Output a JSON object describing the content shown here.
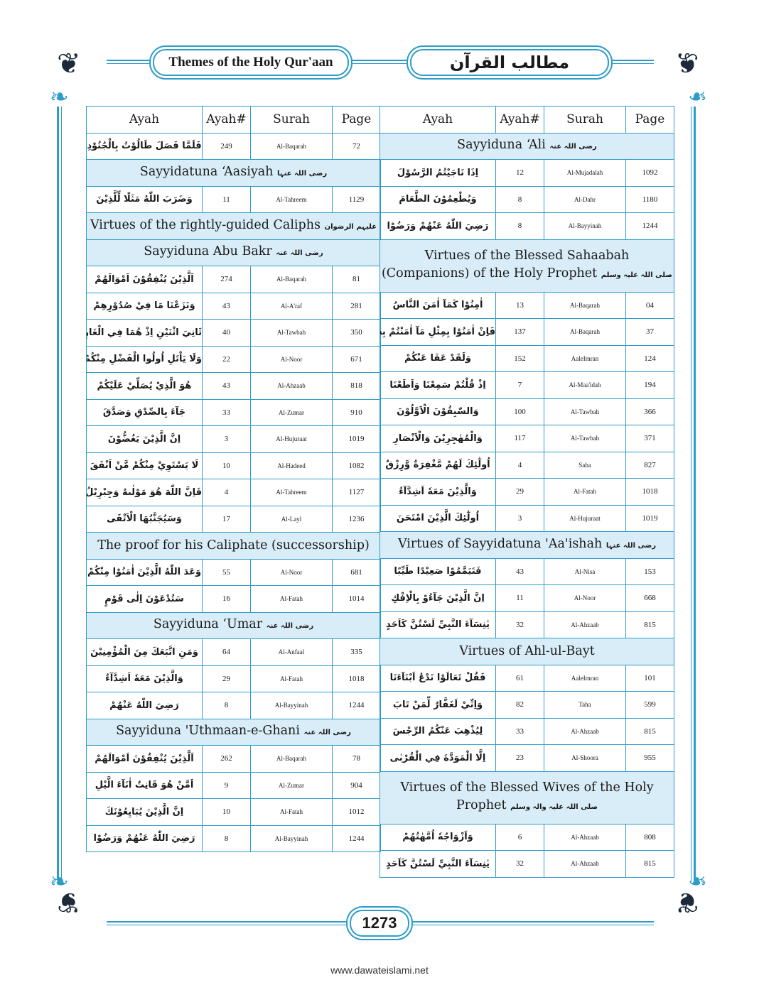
{
  "header": {
    "title_en": "Themes of the Holy Qur'aan",
    "title_ar": "مطالب القرآن"
  },
  "columns": [
    "Ayah",
    "Ayah#",
    "Surah",
    "Page"
  ],
  "left": [
    {
      "type": "row",
      "ayah": "فَلَمَّا فَصَلَ طَالُوْتُ بِالْجُنُوْدِ",
      "num": "249",
      "surah": "Al-Baqarah",
      "page": "72"
    },
    {
      "type": "section",
      "title": "Sayyidatuna ‘Aasiyah",
      "honorific": "رضی اللہ عنہا"
    },
    {
      "type": "row",
      "ayah": "وَضَرَبَ اللّٰهُ مَثَلًا لِّلَّذِيْنَ",
      "num": "11",
      "surah": "Al-Tahreem",
      "page": "1129"
    },
    {
      "type": "section",
      "title": "Virtues of the rightly-guided Caliphs",
      "honorific": "علیہم الرضوان"
    },
    {
      "type": "section",
      "title": "Sayyiduna Abu Bakr",
      "honorific": "رضی اللہ عنہ"
    },
    {
      "type": "row",
      "ayah": "اَلَّذِيْنَ يُنْفِقُوْنَ اَمْوَالَهُمْ",
      "num": "274",
      "surah": "Al-Baqarah",
      "page": "81"
    },
    {
      "type": "row",
      "ayah": "وَنَزَعْنَا مَا فِيْ صُدُوْرِهِمْ",
      "num": "43",
      "surah": "Al-A'raf",
      "page": "281"
    },
    {
      "type": "row",
      "ayah": "ثَانِيَ اثْنَيْنِ اِذْ هُمَا فِي الْغَارِ",
      "num": "40",
      "surah": "Al-Tawbah",
      "page": "350"
    },
    {
      "type": "row",
      "ayah": "وَلَا يَاْتَلِ اُولُوا الْفَضْلِ مِنْكُمْ",
      "num": "22",
      "surah": "Al-Noor",
      "page": "671"
    },
    {
      "type": "row",
      "ayah": "هُوَ الَّذِيْ يُصَلِّيْ عَلَيْكُمْ",
      "num": "43",
      "surah": "Al-Ahzaab",
      "page": "818"
    },
    {
      "type": "row",
      "ayah": "جَآءَ بِالصِّدْقِ وَصَدَّقَ",
      "num": "33",
      "surah": "Al-Zumar",
      "page": "910"
    },
    {
      "type": "row",
      "ayah": "اِنَّ الَّذِيْنَ يَغُضُّوْنَ",
      "num": "3",
      "surah": "Al-Hujuraat",
      "page": "1019"
    },
    {
      "type": "row",
      "ayah": "لَا يَسْتَوِيْ مِنْكُمْ مَّنْ اَنْفَقَ",
      "num": "10",
      "surah": "Al-Hadeed",
      "page": "1082"
    },
    {
      "type": "row",
      "ayah": "فَاِنَّ اللّٰهَ هُوَ مَوْلٰىهُ وَجِبْرِيْلُ",
      "num": "4",
      "surah": "Al-Tahreem",
      "page": "1127"
    },
    {
      "type": "row",
      "ayah": "وَسَيُجَنَّبُهَا الْاَتْقَى",
      "num": "17",
      "surah": "Al-Layl",
      "page": "1236"
    },
    {
      "type": "section",
      "title": "The proof for his Caliphate (successorship)",
      "honorific": ""
    },
    {
      "type": "row",
      "ayah": "وَعَدَ اللّٰهُ الَّذِيْنَ اٰمَنُوْا مِنْكُمْ",
      "num": "55",
      "surah": "Al-Noor",
      "page": "681"
    },
    {
      "type": "row",
      "ayah": "سَتُدْعَوْنَ اِلٰى قَوْمٍ",
      "num": "16",
      "surah": "Al-Fatah",
      "page": "1014"
    },
    {
      "type": "section",
      "title": "Sayyiduna ‘Umar",
      "honorific": "رضی اللہ عنہ"
    },
    {
      "type": "row",
      "ayah": "وَمَنِ اتَّبَعَكَ مِنَ الْمُؤْمِنِيْنَ",
      "num": "64",
      "surah": "Al-Anfaal",
      "page": "335"
    },
    {
      "type": "row",
      "ayah": "وَالَّذِيْنَ مَعَهٗ اَشِدَّآءُ",
      "num": "29",
      "surah": "Al-Fatah",
      "page": "1018"
    },
    {
      "type": "row",
      "ayah": "رَضِيَ اللّٰهُ عَنْهُمْ",
      "num": "8",
      "surah": "Al-Bayyinah",
      "page": "1244"
    },
    {
      "type": "section",
      "title": "Sayyiduna 'Uthmaan-e-Ghani",
      "honorific": "رضی اللہ عنہ"
    },
    {
      "type": "row",
      "ayah": "اَلَّذِيْنَ يُنْفِقُوْنَ اَمْوَالَهُمْ",
      "num": "262",
      "surah": "Al-Baqarah",
      "page": "78"
    },
    {
      "type": "row",
      "ayah": "اَمَّنْ هُوَ قَانِتٌ اٰنَآءَ الَّيْلِ",
      "num": "9",
      "surah": "Al-Zumar",
      "page": "904"
    },
    {
      "type": "row",
      "ayah": "اِنَّ الَّذِيْنَ يُبَايِعُوْنَكَ",
      "num": "10",
      "surah": "Al-Fatah",
      "page": "1012"
    },
    {
      "type": "row",
      "ayah": "رَضِيَ اللّٰهُ عَنْهُمْ وَرَضُوْا",
      "num": "8",
      "surah": "Al-Bayyinah",
      "page": "1244"
    }
  ],
  "right": [
    {
      "type": "section",
      "title": "Sayyiduna ‘Ali",
      "honorific": "رضی اللہ عنہ"
    },
    {
      "type": "row",
      "ayah": "اِذَا نَاجَيْتُمُ الرَّسُوْلَ",
      "num": "12",
      "surah": "Al-Mujadalah",
      "page": "1092"
    },
    {
      "type": "row",
      "ayah": "وَيُطْعِمُوْنَ الطَّعَامَ",
      "num": "8",
      "surah": "Al-Dahr",
      "page": "1180"
    },
    {
      "type": "row",
      "ayah": "رَضِيَ اللّٰهُ عَنْهُمْ وَرَضُوْا",
      "num": "8",
      "surah": "Al-Bayyinah",
      "page": "1244"
    },
    {
      "type": "section",
      "title": "Virtues of the Blessed Sahaabah (Companions) of the Holy Prophet",
      "honorific": "صلی اللہ علیہ وسلم",
      "double": true
    },
    {
      "type": "row",
      "ayah": "اٰمِنُوْا كَمَآ اٰمَنَ النَّاسُ",
      "num": "13",
      "surah": "Al-Baqarah",
      "page": "04"
    },
    {
      "type": "row",
      "ayah": "فَاِنْ اٰمَنُوْا بِمِثْلِ مَآ اٰمَنْتُمْ بِهٖ",
      "num": "137",
      "surah": "Al-Baqarah",
      "page": "37"
    },
    {
      "type": "row",
      "ayah": "وَلَقَدْ عَفَا عَنْكُمْ",
      "num": "152",
      "surah": "AaleImran",
      "page": "124"
    },
    {
      "type": "row",
      "ayah": "اِذْ قُلْتُمْ سَمِعْنَا وَاَطَعْنَا",
      "num": "7",
      "surah": "Al-Maa'idah",
      "page": "194"
    },
    {
      "type": "row",
      "ayah": "وَالسّٰبِقُوْنَ الْاَوَّلُوْنَ",
      "num": "100",
      "surah": "Al-Tawbah",
      "page": "366"
    },
    {
      "type": "row",
      "ayah": "وَالْمُهٰجِرِيْنَ وَالْاَنْصَارِ",
      "num": "117",
      "surah": "Al-Tawbah",
      "page": "371"
    },
    {
      "type": "row",
      "ayah": "اُولٰٓئِكَ لَهُمْ مَّغْفِرَةٌ وَّرِزْقٌ",
      "num": "4",
      "surah": "Saba",
      "page": "827"
    },
    {
      "type": "row",
      "ayah": "وَالَّذِيْنَ مَعَهٗ اَشِدَّآءُ",
      "num": "29",
      "surah": "Al-Fatah",
      "page": "1018"
    },
    {
      "type": "row",
      "ayah": "اُولٰٓئِكَ الَّذِيْنَ امْتَحَنَ",
      "num": "3",
      "surah": "Al-Hujuraat",
      "page": "1019"
    },
    {
      "type": "section",
      "title": "Virtues of Sayyidatuna 'Aa'ishah",
      "honorific": "رضی اللہ عنہا"
    },
    {
      "type": "row",
      "ayah": "فَتَيَمَّمُوْا صَعِيْدًا طَيِّبًا",
      "num": "43",
      "surah": "Al-Nisa",
      "page": "153"
    },
    {
      "type": "row",
      "ayah": "اِنَّ الَّذِيْنَ جَآءُوْ بِالْاِفْكِ",
      "num": "11",
      "surah": "Al-Noor",
      "page": "668"
    },
    {
      "type": "row",
      "ayah": "يٰنِسَآءَ النَّبِيِّ لَسْتُنَّ كَاَحَدٍ",
      "num": "32",
      "surah": "Al-Ahzaab",
      "page": "815"
    },
    {
      "type": "section",
      "title": "Virtues of Ahl-ul-Bayt",
      "honorific": ""
    },
    {
      "type": "row",
      "ayah": "فَقُلْ تَعَالَوْا نَدْعُ اَبْنَآءَنَا",
      "num": "61",
      "surah": "AaleImran",
      "page": "101"
    },
    {
      "type": "row",
      "ayah": "وَاِنِّيْ لَغَفَّارٌ لِّمَنْ تَابَ",
      "num": "82",
      "surah": "Taha",
      "page": "599"
    },
    {
      "type": "row",
      "ayah": "لِيُذْهِبَ عَنْكُمُ الرِّجْسَ",
      "num": "33",
      "surah": "Al-Ahzaab",
      "page": "815"
    },
    {
      "type": "row",
      "ayah": "اِلَّا الْمَوَدَّةَ فِي الْقُرْبٰى",
      "num": "23",
      "surah": "Al-Shoora",
      "page": "955"
    },
    {
      "type": "section",
      "title": "Virtues of the Blessed Wives of the Holy Prophet",
      "honorific": "صلی اللہ علیہ والہ وسلم",
      "double": true
    },
    {
      "type": "row",
      "ayah": "وَاَزْوَاجُهٗ اُمَّهٰتُهُمْ",
      "num": "6",
      "surah": "Al-Ahzaab",
      "page": "808"
    },
    {
      "type": "row",
      "ayah": "يٰنِسَآءَ النَّبِيِّ لَسْتُنَّ كَاَحَدٍ",
      "num": "32",
      "surah": "Al-Ahzaab",
      "page": "815"
    }
  ],
  "page_number": "1273",
  "footer": "www.dawateislami.net",
  "colors": {
    "border": "#2e9cc9",
    "section_bg": "#d9edf8"
  }
}
